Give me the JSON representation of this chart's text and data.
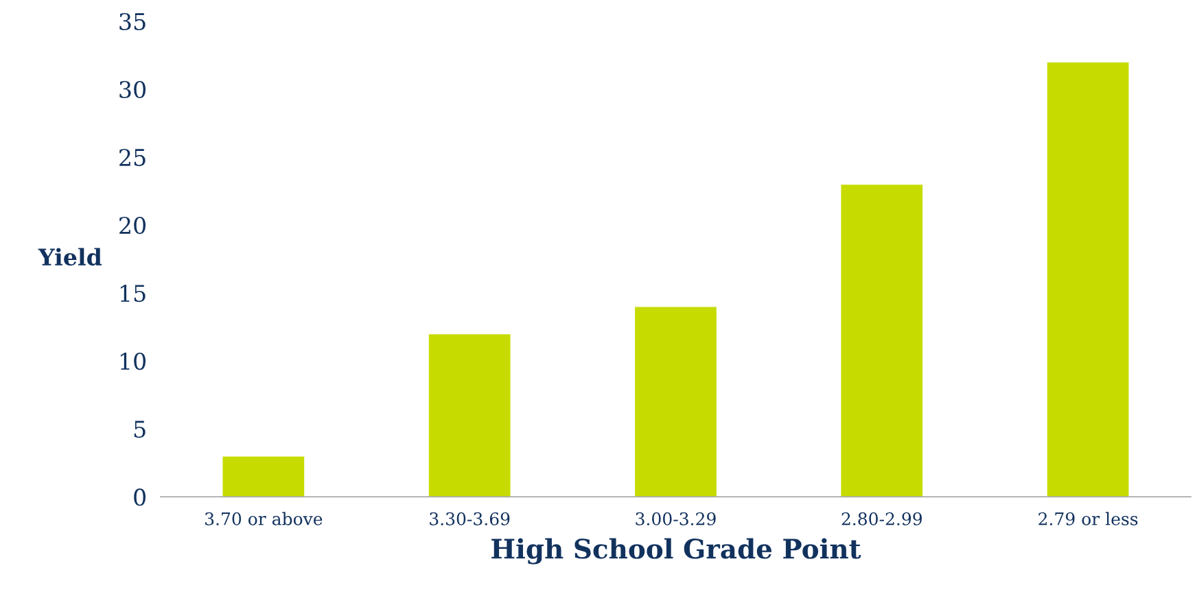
{
  "chart_data": {
    "type": "bar",
    "xlabel": "High School Grade Point",
    "ylabel": "Yield",
    "categories": [
      "3.70 or above",
      "3.30-3.69",
      "3.00-3.29",
      "2.80-2.99",
      "2.79 or less"
    ],
    "values": [
      3,
      12,
      14,
      23,
      32
    ],
    "color": "#c6dc00",
    "ylim": [
      0,
      35
    ],
    "yticks": [
      0,
      5,
      10,
      15,
      20,
      25,
      30,
      35
    ],
    "grid": false,
    "legend": false
  }
}
